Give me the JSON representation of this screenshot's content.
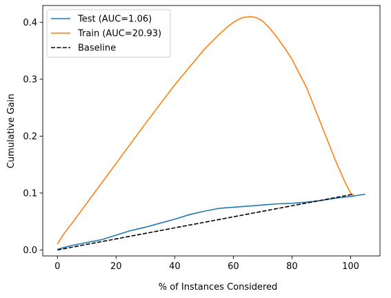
{
  "chart_data": {
    "type": "line",
    "title": "",
    "xlabel": "% of Instances Considered",
    "ylabel": "Cumulative Gain",
    "xlim": [
      -5,
      110
    ],
    "ylim": [
      -0.0105,
      0.4295
    ],
    "xticks": [
      0,
      20,
      40,
      60,
      80,
      100
    ],
    "xtick_labels": [
      "0",
      "20",
      "40",
      "60",
      "80",
      "100"
    ],
    "yticks": [
      0.0,
      0.1,
      0.2,
      0.3,
      0.4
    ],
    "ytick_labels": [
      "0.0",
      "0.1",
      "0.2",
      "0.3",
      "0.4"
    ],
    "grid": false,
    "legend_position": "top-left",
    "series": [
      {
        "name": "Test (AUC=1.06)",
        "color": "#1f77b4",
        "style": "solid",
        "x": [
          0,
          2,
          5,
          10,
          15,
          20,
          25,
          30,
          35,
          40,
          45,
          50,
          55,
          60,
          65,
          70,
          75,
          80,
          85,
          90,
          95,
          100,
          105
        ],
        "y": [
          0.001,
          0.004,
          0.008,
          0.013,
          0.018,
          0.026,
          0.034,
          0.04,
          0.047,
          0.054,
          0.062,
          0.068,
          0.073,
          0.075,
          0.077,
          0.079,
          0.081,
          0.082,
          0.084,
          0.087,
          0.091,
          0.094,
          0.098
        ]
      },
      {
        "name": "Train (AUC=20.93)",
        "color": "#ff7f0e",
        "style": "solid",
        "x": [
          0,
          2,
          5,
          10,
          20,
          30,
          40,
          50,
          55,
          58,
          60,
          62,
          64,
          66,
          68,
          70,
          72,
          75,
          78,
          80,
          85,
          90,
          95,
          98,
          100,
          101
        ],
        "y": [
          0.01,
          0.027,
          0.047,
          0.082,
          0.152,
          0.222,
          0.29,
          0.352,
          0.378,
          0.392,
          0.4,
          0.406,
          0.409,
          0.41,
          0.408,
          0.402,
          0.392,
          0.373,
          0.351,
          0.335,
          0.285,
          0.22,
          0.155,
          0.12,
          0.1,
          0.096
        ]
      },
      {
        "name": "Baseline",
        "color": "#000000",
        "style": "dashed",
        "x": [
          0,
          101
        ],
        "y": [
          0.0,
          0.098
        ]
      }
    ]
  }
}
